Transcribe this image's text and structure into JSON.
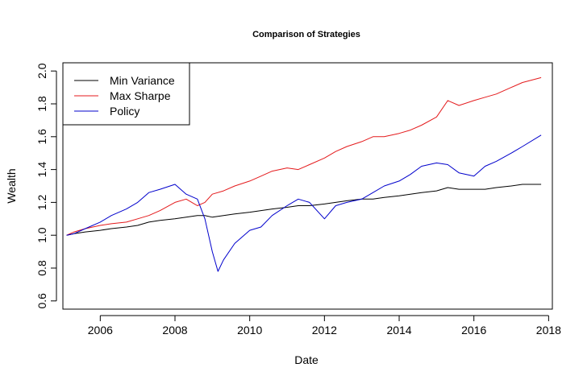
{
  "chart_data": {
    "type": "line",
    "title": "Comparison of Strategies",
    "xlabel": "Date",
    "ylabel": "Wealth",
    "xlim": [
      2005.0,
      2018.1
    ],
    "ylim": [
      0.55,
      2.05
    ],
    "x_ticks": [
      2006,
      2008,
      2010,
      2012,
      2014,
      2016,
      2018
    ],
    "x_tick_labels": [
      "2006",
      "2008",
      "2010",
      "2012",
      "2014",
      "2016",
      "2018"
    ],
    "y_ticks": [
      0.6,
      0.8,
      1.0,
      1.2,
      1.4,
      1.6,
      1.8,
      2.0
    ],
    "y_tick_labels": [
      "0.6",
      "0.8",
      "1.0",
      "1.2",
      "1.4",
      "1.6",
      "1.8",
      "2.0"
    ],
    "grid": false,
    "legend_position": "top-left",
    "series": [
      {
        "name": "Min Variance",
        "color": "#000000",
        "x": [
          2005.1,
          2005.3,
          2005.6,
          2006.0,
          2006.3,
          2006.7,
          2007.0,
          2007.3,
          2007.6,
          2008.0,
          2008.3,
          2008.6,
          2008.8,
          2009.0,
          2009.3,
          2009.6,
          2010.0,
          2010.3,
          2010.6,
          2011.0,
          2011.3,
          2011.6,
          2012.0,
          2012.3,
          2012.6,
          2013.0,
          2013.3,
          2013.6,
          2014.0,
          2014.3,
          2014.6,
          2015.0,
          2015.3,
          2015.6,
          2016.0,
          2016.3,
          2016.6,
          2017.0,
          2017.3,
          2017.8
        ],
        "y": [
          1.0,
          1.01,
          1.02,
          1.03,
          1.04,
          1.05,
          1.06,
          1.08,
          1.09,
          1.1,
          1.11,
          1.12,
          1.12,
          1.11,
          1.12,
          1.13,
          1.14,
          1.15,
          1.16,
          1.17,
          1.18,
          1.18,
          1.19,
          1.2,
          1.21,
          1.22,
          1.22,
          1.23,
          1.24,
          1.25,
          1.26,
          1.27,
          1.29,
          1.28,
          1.28,
          1.28,
          1.29,
          1.3,
          1.31,
          1.31
        ]
      },
      {
        "name": "Max Sharpe",
        "color": "#e41a1c",
        "x": [
          2005.1,
          2005.3,
          2005.6,
          2006.0,
          2006.3,
          2006.7,
          2007.0,
          2007.3,
          2007.6,
          2008.0,
          2008.3,
          2008.6,
          2008.8,
          2009.0,
          2009.3,
          2009.6,
          2010.0,
          2010.3,
          2010.6,
          2011.0,
          2011.3,
          2011.6,
          2012.0,
          2012.3,
          2012.6,
          2013.0,
          2013.3,
          2013.6,
          2014.0,
          2014.3,
          2014.6,
          2015.0,
          2015.3,
          2015.6,
          2016.0,
          2016.3,
          2016.6,
          2017.0,
          2017.3,
          2017.8
        ],
        "y": [
          1.0,
          1.02,
          1.04,
          1.06,
          1.07,
          1.08,
          1.1,
          1.12,
          1.15,
          1.2,
          1.22,
          1.18,
          1.2,
          1.25,
          1.27,
          1.3,
          1.33,
          1.36,
          1.39,
          1.41,
          1.4,
          1.43,
          1.47,
          1.51,
          1.54,
          1.57,
          1.6,
          1.6,
          1.62,
          1.64,
          1.67,
          1.72,
          1.82,
          1.79,
          1.82,
          1.84,
          1.86,
          1.9,
          1.93,
          1.96
        ]
      },
      {
        "name": "Policy",
        "color": "#0000cc",
        "x": [
          2005.1,
          2005.3,
          2005.6,
          2006.0,
          2006.3,
          2006.7,
          2007.0,
          2007.3,
          2007.6,
          2008.0,
          2008.3,
          2008.6,
          2008.8,
          2009.0,
          2009.15,
          2009.3,
          2009.6,
          2010.0,
          2010.3,
          2010.6,
          2011.0,
          2011.3,
          2011.6,
          2012.0,
          2012.3,
          2012.6,
          2013.0,
          2013.3,
          2013.6,
          2014.0,
          2014.3,
          2014.6,
          2015.0,
          2015.3,
          2015.6,
          2016.0,
          2016.3,
          2016.6,
          2017.0,
          2017.3,
          2017.8
        ],
        "y": [
          1.0,
          1.01,
          1.04,
          1.08,
          1.12,
          1.16,
          1.2,
          1.26,
          1.28,
          1.31,
          1.25,
          1.22,
          1.1,
          0.9,
          0.78,
          0.85,
          0.95,
          1.03,
          1.05,
          1.12,
          1.18,
          1.22,
          1.2,
          1.1,
          1.18,
          1.2,
          1.22,
          1.26,
          1.3,
          1.33,
          1.37,
          1.42,
          1.44,
          1.43,
          1.38,
          1.36,
          1.42,
          1.45,
          1.5,
          1.54,
          1.61
        ]
      }
    ]
  }
}
